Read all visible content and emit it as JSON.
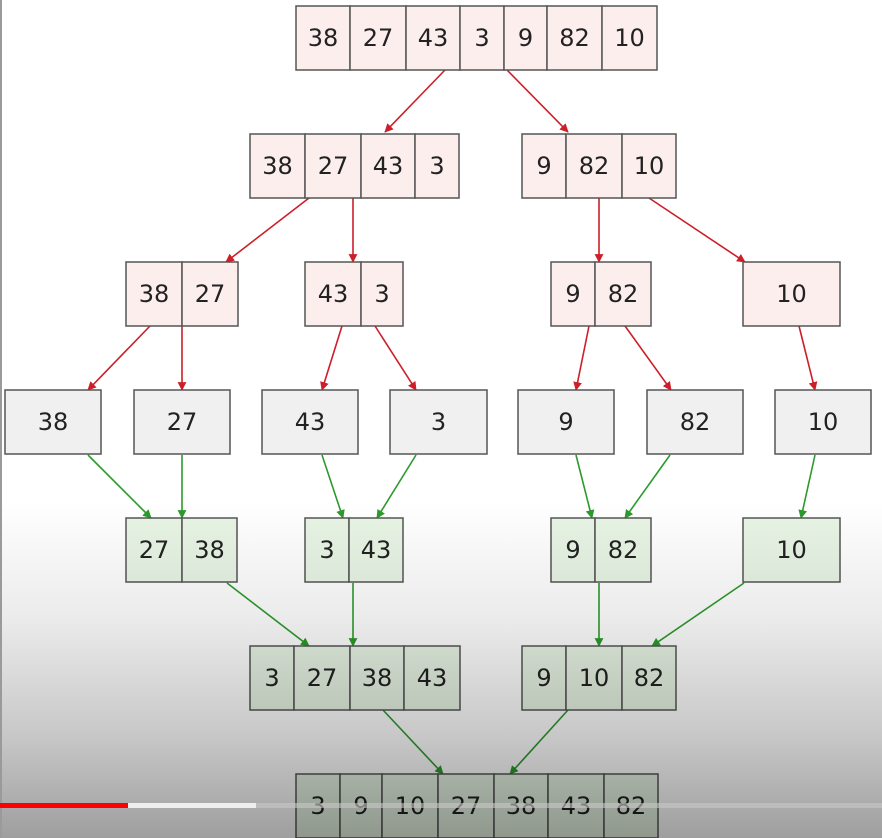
{
  "rows": [
    {
      "kind": "split",
      "nodes": [
        [
          "38",
          "27",
          "43",
          "3",
          "9",
          "82",
          "10"
        ]
      ]
    },
    {
      "kind": "split",
      "nodes": [
        [
          "38",
          "27",
          "43",
          "3"
        ],
        [
          "9",
          "82",
          "10"
        ]
      ]
    },
    {
      "kind": "split",
      "nodes": [
        [
          "38",
          "27"
        ],
        [
          "43",
          "3"
        ],
        [
          "9",
          "82"
        ],
        [
          "10"
        ]
      ]
    },
    {
      "kind": "leaf",
      "nodes": [
        [
          "38"
        ],
        [
          "27"
        ],
        [
          "43"
        ],
        [
          "3"
        ],
        [
          "9"
        ],
        [
          "82"
        ],
        [
          "10"
        ]
      ]
    },
    {
      "kind": "merge",
      "nodes": [
        [
          "27",
          "38"
        ],
        [
          "3",
          "43"
        ],
        [
          "9",
          "82"
        ],
        [
          "10"
        ]
      ]
    },
    {
      "kind": "merge",
      "nodes": [
        [
          "3",
          "27",
          "38",
          "43"
        ],
        [
          "9",
          "10",
          "82"
        ]
      ]
    },
    {
      "kind": "merge",
      "nodes": [
        [
          "3",
          "9",
          "10",
          "27",
          "38",
          "43",
          "82"
        ]
      ]
    }
  ],
  "colors": {
    "split_fill": "#fdeeee",
    "leaf_fill": "#f0f0f0",
    "merge_fill": "#e8f5e5",
    "stroke": "#555555",
    "split_arrow": "#cc1f2a",
    "merge_arrow": "#2c9a2c",
    "progress": "#ff0000"
  },
  "player": {
    "progress_fraction": 0.145,
    "buffered_fraction": 0.29
  }
}
